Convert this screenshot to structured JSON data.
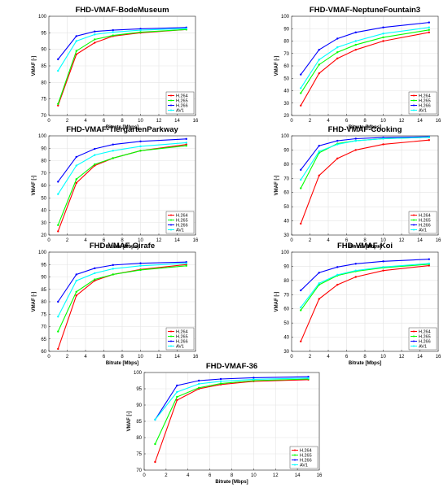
{
  "colors": {
    "H.264": "#ff0000",
    "H.265": "#00ff00",
    "H.266": "#0000ff",
    "AV1": "#00ffff"
  },
  "chart_data": [
    {
      "type": "line",
      "title": "FHD-VMAF-BodeMuseum",
      "xlabel": "Bitrate [Mbps]",
      "ylabel": "VMAF [-]",
      "xlim": [
        0,
        16
      ],
      "ylim": [
        70,
        100
      ],
      "xticks": [
        0,
        2,
        4,
        6,
        8,
        10,
        12,
        14,
        16
      ],
      "yticks": [
        70,
        75,
        80,
        85,
        90,
        95,
        100
      ],
      "grid": true,
      "legend": "bottom-right",
      "x": [
        1,
        3,
        5,
        7,
        10,
        15
      ],
      "series": [
        {
          "name": "H.264",
          "values": [
            73,
            88.5,
            92,
            94,
            95,
            96
          ]
        },
        {
          "name": "H.265",
          "values": [
            73.5,
            89.5,
            93,
            94.2,
            95.2,
            96
          ]
        },
        {
          "name": "H.266",
          "values": [
            87,
            94,
            95.4,
            95.8,
            96.2,
            96.6
          ]
        },
        {
          "name": "AV1",
          "values": [
            83.5,
            92.5,
            94.5,
            95.2,
            95.8,
            96.3
          ]
        }
      ]
    },
    {
      "type": "line",
      "title": "FHD-VMAF-NeptuneFountain3",
      "xlabel": "Bitrate [Mbps]",
      "ylabel": "VMAF [-]",
      "xlim": [
        0,
        16
      ],
      "ylim": [
        20,
        100
      ],
      "xticks": [
        0,
        2,
        4,
        6,
        8,
        10,
        12,
        14,
        16
      ],
      "yticks": [
        20,
        30,
        40,
        50,
        60,
        70,
        80,
        90,
        100
      ],
      "grid": true,
      "legend": "bottom-right",
      "x": [
        1,
        3,
        5,
        7,
        10,
        15
      ],
      "series": [
        {
          "name": "H.264",
          "values": [
            28,
            54,
            66,
            73,
            80,
            87
          ]
        },
        {
          "name": "H.265",
          "values": [
            38,
            61,
            71,
            77,
            83,
            89
          ]
        },
        {
          "name": "H.266",
          "values": [
            53,
            73,
            82,
            87,
            91,
            95
          ]
        },
        {
          "name": "AV1",
          "values": [
            42,
            65,
            75,
            80,
            86,
            91
          ]
        }
      ]
    },
    {
      "type": "line",
      "title": "FHD-VMAF-TiergartenParkway",
      "xlabel": "Bitrate [Mbps]",
      "ylabel": "VMAF [-]",
      "xlim": [
        0,
        16
      ],
      "ylim": [
        20,
        100
      ],
      "xticks": [
        0,
        2,
        4,
        6,
        8,
        10,
        12,
        14,
        16
      ],
      "yticks": [
        20,
        30,
        40,
        50,
        60,
        70,
        80,
        90,
        100
      ],
      "grid": true,
      "legend": "bottom-right",
      "x": [
        1,
        3,
        5,
        7,
        10,
        15
      ],
      "series": [
        {
          "name": "H.264",
          "values": [
            23,
            62,
            76,
            82,
            88,
            93
          ]
        },
        {
          "name": "H.265",
          "values": [
            28,
            65,
            77,
            82,
            88,
            92
          ]
        },
        {
          "name": "H.266",
          "values": [
            63,
            83,
            89.5,
            93,
            95.5,
            97.5
          ]
        },
        {
          "name": "AV1",
          "values": [
            53,
            76,
            84.5,
            88,
            91.5,
            94.5
          ]
        }
      ]
    },
    {
      "type": "line",
      "title": "FHD-VMAF-Cooking",
      "xlabel": "Bitrate [Mbps]",
      "ylabel": "VMAF [-]",
      "xlim": [
        0,
        16
      ],
      "ylim": [
        30,
        100
      ],
      "xticks": [
        0,
        2,
        4,
        6,
        8,
        10,
        12,
        14,
        16
      ],
      "yticks": [
        30,
        40,
        50,
        60,
        70,
        80,
        90,
        100
      ],
      "grid": true,
      "legend": "bottom-right",
      "x": [
        1,
        3,
        5,
        7,
        10,
        15
      ],
      "series": [
        {
          "name": "H.264",
          "values": [
            38,
            72,
            84,
            90,
            94,
            97
          ]
        },
        {
          "name": "H.265",
          "values": [
            63,
            88,
            94.5,
            96.5,
            98,
            99
          ]
        },
        {
          "name": "H.266",
          "values": [
            76,
            93,
            96.5,
            98,
            98.8,
            99.4
          ]
        },
        {
          "name": "AV1",
          "values": [
            69,
            89,
            94,
            96.5,
            98,
            99
          ]
        }
      ]
    },
    {
      "type": "line",
      "title": "FHD-VMAF-Girafe",
      "xlabel": "Bitrate [Mbps]",
      "ylabel": "VMAF [-]",
      "xlim": [
        0,
        16
      ],
      "ylim": [
        60,
        100
      ],
      "xticks": [
        0,
        2,
        4,
        6,
        8,
        10,
        12,
        14,
        16
      ],
      "yticks": [
        60,
        65,
        70,
        75,
        80,
        85,
        90,
        95,
        100
      ],
      "grid": true,
      "legend": "bottom-right",
      "x": [
        1,
        3,
        5,
        7,
        10,
        15
      ],
      "series": [
        {
          "name": "H.264",
          "values": [
            61,
            82.5,
            88.5,
            91,
            93,
            95
          ]
        },
        {
          "name": "H.265",
          "values": [
            68,
            84,
            89,
            91,
            92.8,
            94.5
          ]
        },
        {
          "name": "H.266",
          "values": [
            80,
            91,
            93.5,
            94.8,
            95.5,
            96
          ]
        },
        {
          "name": "AV1",
          "values": [
            74,
            88.5,
            91.5,
            93.3,
            94.5,
            95.5
          ]
        }
      ]
    },
    {
      "type": "line",
      "title": "FHD-VMAF-Koi",
      "xlabel": "Bitrate [Mbps]",
      "ylabel": "VMAF [-]",
      "xlim": [
        0,
        16
      ],
      "ylim": [
        30,
        100
      ],
      "xticks": [
        0,
        2,
        4,
        6,
        8,
        10,
        12,
        14,
        16
      ],
      "yticks": [
        30,
        40,
        50,
        60,
        70,
        80,
        90,
        100
      ],
      "grid": true,
      "legend": "bottom-right",
      "x": [
        1,
        3,
        5,
        7,
        10,
        15
      ],
      "series": [
        {
          "name": "H.264",
          "values": [
            37,
            67,
            77,
            82.5,
            87,
            90.5
          ]
        },
        {
          "name": "H.265",
          "values": [
            59,
            77,
            83.5,
            86.5,
            89,
            91.5
          ]
        },
        {
          "name": "H.266",
          "values": [
            73,
            85.5,
            89.5,
            91.8,
            93.5,
            95
          ]
        },
        {
          "name": "AV1",
          "values": [
            61,
            78,
            84,
            87,
            89.5,
            92
          ]
        }
      ]
    },
    {
      "type": "line",
      "title": "FHD-VMAF-36",
      "xlabel": "Bitrate [Mbps]",
      "ylabel": "VMAF [-]",
      "xlim": [
        0,
        16
      ],
      "ylim": [
        70,
        100
      ],
      "xticks": [
        0,
        2,
        4,
        6,
        8,
        10,
        12,
        14,
        16
      ],
      "yticks": [
        70,
        75,
        80,
        85,
        90,
        95,
        100
      ],
      "grid": true,
      "legend": "bottom-right",
      "x": [
        1,
        3,
        5,
        7,
        10,
        15
      ],
      "series": [
        {
          "name": "H.264",
          "values": [
            72.5,
            91.5,
            95,
            96.3,
            97.3,
            97.8
          ]
        },
        {
          "name": "H.265",
          "values": [
            78,
            92.5,
            95.3,
            96.6,
            97.5,
            98
          ]
        },
        {
          "name": "H.266",
          "values": [
            85.5,
            96,
            97.5,
            98,
            98.4,
            98.7
          ]
        },
        {
          "name": "AV1",
          "values": [
            85.5,
            94,
            96.5,
            97.3,
            97.9,
            98.3
          ]
        }
      ]
    }
  ]
}
